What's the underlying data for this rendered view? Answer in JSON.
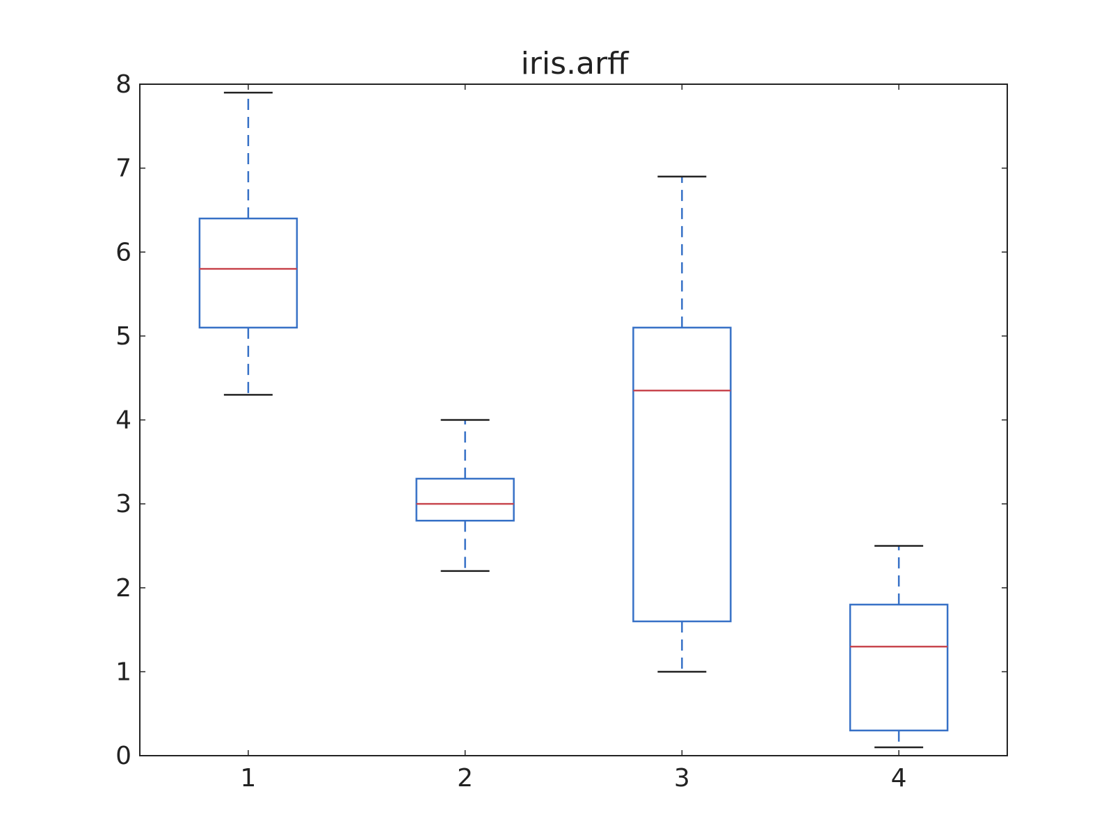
{
  "chart_data": {
    "type": "box",
    "title": "iris.arff",
    "xlabel": "",
    "ylabel": "",
    "categories": [
      "1",
      "2",
      "3",
      "4"
    ],
    "ylim": [
      0,
      8
    ],
    "yticks": [
      0,
      1,
      2,
      3,
      4,
      5,
      6,
      7,
      8
    ],
    "ytick_labels": [
      "0",
      "1",
      "2",
      "3",
      "4",
      "5",
      "6",
      "7",
      "8"
    ],
    "grid": false,
    "boxes": [
      {
        "category": "1",
        "whisker_low": 4.3,
        "q1": 5.1,
        "median": 5.8,
        "q3": 6.4,
        "whisker_high": 7.9
      },
      {
        "category": "2",
        "whisker_low": 2.2,
        "q1": 2.8,
        "median": 3.0,
        "q3": 3.3,
        "whisker_high": 4.0
      },
      {
        "category": "3",
        "whisker_low": 1.0,
        "q1": 1.6,
        "median": 4.35,
        "q3": 5.1,
        "whisker_high": 6.9
      },
      {
        "category": "4",
        "whisker_low": 0.1,
        "q1": 0.3,
        "median": 1.3,
        "q3": 1.8,
        "whisker_high": 2.5
      }
    ],
    "colors": {
      "box": "#3670c6",
      "whisker": "#3670c6",
      "cap": "#222222",
      "median": "#c8474f",
      "axes": "#222222"
    }
  }
}
